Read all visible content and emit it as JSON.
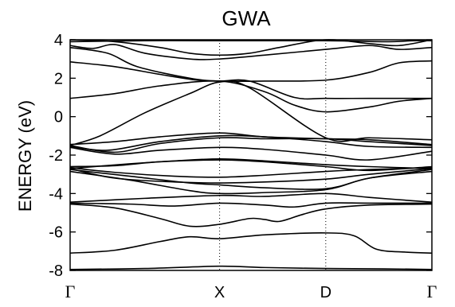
{
  "chart_data": {
    "type": "line",
    "title": "GWA",
    "ylabel": "ENERGY (eV)",
    "xlabel": "",
    "ylim": [
      -8,
      4
    ],
    "yticks": [
      -8,
      -6,
      -4,
      -2,
      0,
      2,
      4
    ],
    "ytick_labels": [
      "-8",
      "-6",
      "-4",
      "-2",
      "0",
      "2",
      "4"
    ],
    "kpoints": [
      {
        "label": "Γ",
        "x": 0.0
      },
      {
        "label": "X",
        "x": 1.0
      },
      {
        "label": "D",
        "x": 1.71
      },
      {
        "label": "Γ",
        "x": 2.42
      }
    ],
    "vertical_guides": [
      1.0,
      1.71
    ],
    "grid": false,
    "legend": "none",
    "line_color": "#000000",
    "series": [
      {
        "points": [
          [
            0,
            -7.95
          ],
          [
            0.5,
            -7.9
          ],
          [
            1.0,
            -7.78
          ],
          [
            1.3,
            -7.85
          ],
          [
            1.71,
            -7.9
          ],
          [
            2.1,
            -7.92
          ],
          [
            2.42,
            -7.95
          ]
        ]
      },
      {
        "points": [
          [
            0,
            -7.1
          ],
          [
            0.3,
            -6.95
          ],
          [
            0.6,
            -6.5
          ],
          [
            0.8,
            -6.25
          ],
          [
            1.0,
            -6.35
          ],
          [
            1.3,
            -6.15
          ],
          [
            1.71,
            -6.05
          ],
          [
            1.9,
            -6.2
          ],
          [
            2.05,
            -6.9
          ],
          [
            2.25,
            -7.05
          ],
          [
            2.42,
            -7.1
          ]
        ]
      },
      {
        "points": [
          [
            0,
            -4.55
          ],
          [
            0.3,
            -4.75
          ],
          [
            0.6,
            -5.3
          ],
          [
            0.8,
            -5.7
          ],
          [
            1.0,
            -5.6
          ],
          [
            1.2,
            -5.3
          ],
          [
            1.3,
            -5.35
          ],
          [
            1.4,
            -5.45
          ],
          [
            1.55,
            -5.1
          ],
          [
            1.71,
            -4.8
          ],
          [
            2.0,
            -4.6
          ],
          [
            2.42,
            -4.55
          ]
        ]
      },
      {
        "points": [
          [
            0,
            -4.5
          ],
          [
            0.4,
            -4.55
          ],
          [
            0.7,
            -4.65
          ],
          [
            1.0,
            -4.5
          ],
          [
            1.3,
            -4.6
          ],
          [
            1.5,
            -4.7
          ],
          [
            1.71,
            -4.5
          ],
          [
            2.0,
            -4.5
          ],
          [
            2.42,
            -4.5
          ]
        ]
      },
      {
        "points": [
          [
            0,
            -4.45
          ],
          [
            0.5,
            -4.25
          ],
          [
            1.0,
            -4.1
          ],
          [
            1.3,
            -4.15
          ],
          [
            1.71,
            -4.0
          ],
          [
            2.0,
            -4.2
          ],
          [
            2.42,
            -4.45
          ]
        ]
      },
      {
        "points": [
          [
            0,
            -2.85
          ],
          [
            0.4,
            -3.3
          ],
          [
            0.8,
            -3.85
          ],
          [
            1.0,
            -4.0
          ],
          [
            1.3,
            -3.95
          ],
          [
            1.71,
            -3.8
          ],
          [
            2.0,
            -3.2
          ],
          [
            2.42,
            -2.85
          ]
        ]
      },
      {
        "points": [
          [
            0,
            -2.75
          ],
          [
            0.4,
            -3.1
          ],
          [
            0.8,
            -3.45
          ],
          [
            1.0,
            -3.55
          ],
          [
            1.3,
            -3.7
          ],
          [
            1.71,
            -3.75
          ],
          [
            2.0,
            -3.2
          ],
          [
            2.42,
            -2.75
          ]
        ]
      },
      {
        "points": [
          [
            0,
            -2.7
          ],
          [
            0.3,
            -3.2
          ],
          [
            0.7,
            -3.4
          ],
          [
            1.0,
            -3.45
          ],
          [
            1.3,
            -3.4
          ],
          [
            1.71,
            -3.25
          ],
          [
            2.0,
            -3.0
          ],
          [
            2.42,
            -2.7
          ]
        ]
      },
      {
        "points": [
          [
            0,
            -2.65
          ],
          [
            0.3,
            -2.9
          ],
          [
            0.7,
            -3.1
          ],
          [
            1.0,
            -3.15
          ],
          [
            1.3,
            -3.05
          ],
          [
            1.71,
            -2.85
          ],
          [
            2.0,
            -2.75
          ],
          [
            2.42,
            -2.65
          ]
        ]
      },
      {
        "points": [
          [
            0,
            -2.6
          ],
          [
            0.3,
            -2.55
          ],
          [
            0.6,
            -2.35
          ],
          [
            1.0,
            -2.25
          ],
          [
            1.3,
            -2.35
          ],
          [
            1.71,
            -2.6
          ],
          [
            2.0,
            -2.8
          ],
          [
            2.42,
            -2.6
          ]
        ]
      },
      {
        "points": [
          [
            0,
            -2.7
          ],
          [
            0.4,
            -2.45
          ],
          [
            0.7,
            -2.3
          ],
          [
            1.0,
            -2.2
          ],
          [
            1.3,
            -2.3
          ],
          [
            1.71,
            -2.5
          ],
          [
            2.0,
            -2.6
          ],
          [
            2.42,
            -2.7
          ]
        ]
      },
      {
        "points": [
          [
            0,
            -1.55
          ],
          [
            0.25,
            -1.75
          ],
          [
            0.6,
            -1.3
          ],
          [
            1.0,
            -1.0
          ],
          [
            1.3,
            -1.05
          ],
          [
            1.71,
            -1.3
          ],
          [
            2.0,
            -1.55
          ],
          [
            2.42,
            -1.6
          ]
        ]
      },
      {
        "points": [
          [
            0,
            -1.5
          ],
          [
            0.3,
            -1.85
          ],
          [
            0.6,
            -1.4
          ],
          [
            1.0,
            -1.1
          ],
          [
            1.3,
            -1.15
          ],
          [
            1.71,
            -1.15
          ],
          [
            2.0,
            -1.3
          ],
          [
            2.42,
            -1.5
          ]
        ]
      },
      {
        "points": [
          [
            0,
            -1.45
          ],
          [
            0.3,
            -1.3
          ],
          [
            0.6,
            -1.05
          ],
          [
            1.0,
            -0.85
          ],
          [
            1.3,
            -1.05
          ],
          [
            1.71,
            -1.15
          ],
          [
            2.0,
            -1.2
          ],
          [
            2.42,
            -1.45
          ]
        ]
      },
      {
        "points": [
          [
            0,
            -1.6
          ],
          [
            0.3,
            -1.95
          ],
          [
            0.6,
            -1.75
          ],
          [
            1.0,
            -1.6
          ],
          [
            1.3,
            -1.7
          ],
          [
            1.71,
            -2.0
          ],
          [
            2.0,
            -2.25
          ],
          [
            2.42,
            -1.8
          ]
        ]
      },
      {
        "points": [
          [
            0,
            -1.5
          ],
          [
            0.2,
            -1.0
          ],
          [
            0.5,
            0.2
          ],
          [
            0.8,
            1.2
          ],
          [
            1.0,
            1.8
          ],
          [
            1.2,
            1.5
          ],
          [
            1.71,
            -1.1
          ],
          [
            2.0,
            -1.1
          ],
          [
            2.42,
            -1.2
          ]
        ]
      },
      {
        "points": [
          [
            0,
            0.95
          ],
          [
            0.3,
            1.2
          ],
          [
            0.6,
            1.6
          ],
          [
            1.0,
            1.85
          ],
          [
            1.3,
            1.3
          ],
          [
            1.5,
            0.6
          ],
          [
            1.71,
            0.25
          ],
          [
            2.0,
            0.5
          ],
          [
            2.2,
            0.8
          ],
          [
            2.42,
            0.95
          ]
        ]
      },
      {
        "points": [
          [
            0,
            2.85
          ],
          [
            0.3,
            2.6
          ],
          [
            0.6,
            2.2
          ],
          [
            0.85,
            1.9
          ],
          [
            1.0,
            1.85
          ],
          [
            1.2,
            1.85
          ],
          [
            1.5,
            1.0
          ],
          [
            1.71,
            0.95
          ],
          [
            2.0,
            0.95
          ],
          [
            2.42,
            0.95
          ]
        ]
      },
      {
        "points": [
          [
            0,
            3.6
          ],
          [
            0.25,
            3.3
          ],
          [
            0.45,
            2.6
          ],
          [
            0.8,
            2.0
          ],
          [
            1.0,
            1.85
          ],
          [
            1.3,
            1.85
          ],
          [
            1.71,
            1.9
          ],
          [
            2.0,
            2.3
          ],
          [
            2.2,
            2.8
          ],
          [
            2.42,
            2.9
          ]
        ]
      },
      {
        "points": [
          [
            0,
            3.7
          ],
          [
            0.15,
            3.55
          ],
          [
            0.3,
            3.75
          ],
          [
            0.5,
            3.3
          ],
          [
            0.8,
            3.0
          ],
          [
            1.0,
            3.0
          ],
          [
            1.3,
            3.2
          ],
          [
            1.71,
            3.5
          ],
          [
            2.0,
            3.7
          ],
          [
            2.2,
            3.5
          ],
          [
            2.42,
            3.6
          ]
        ]
      },
      {
        "points": [
          [
            0,
            4.0
          ],
          [
            0.3,
            3.9
          ],
          [
            0.6,
            3.6
          ],
          [
            0.8,
            3.3
          ],
          [
            1.0,
            3.2
          ],
          [
            1.2,
            3.3
          ],
          [
            1.4,
            3.6
          ],
          [
            1.71,
            4.0
          ],
          [
            2.0,
            3.8
          ],
          [
            2.2,
            3.7
          ],
          [
            2.42,
            4.0
          ]
        ]
      },
      {
        "points": [
          [
            0,
            3.9
          ],
          [
            0.5,
            3.95
          ],
          [
            1.0,
            3.95
          ],
          [
            1.71,
            3.95
          ],
          [
            2.1,
            3.9
          ],
          [
            2.3,
            3.95
          ],
          [
            2.42,
            3.95
          ]
        ]
      }
    ]
  }
}
